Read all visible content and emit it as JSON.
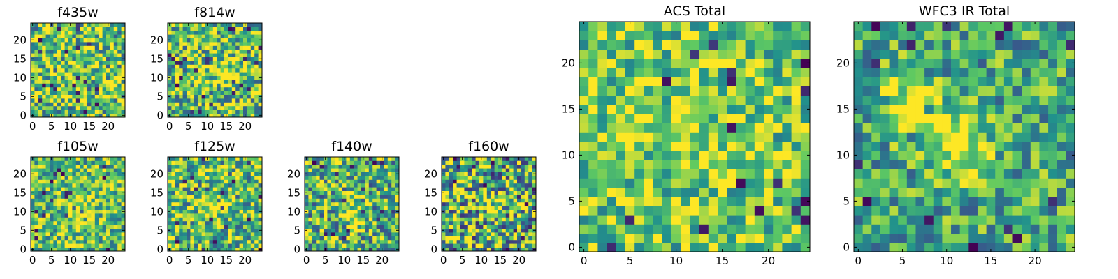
{
  "figure": {
    "background": "#ffffff",
    "colormap": "viridis",
    "colormap_stops": [
      "#440154",
      "#3b528b",
      "#21918c",
      "#5ec962",
      "#fde725"
    ]
  },
  "chart_data": [
    {
      "type": "heatmap",
      "title": "f435w",
      "grid_size": [
        25,
        25
      ],
      "xlim": [
        -0.5,
        24.5
      ],
      "ylim": [
        -0.5,
        24.5
      ],
      "x_ticks": [
        0,
        5,
        10,
        15,
        20
      ],
      "y_ticks": [
        0,
        5,
        10,
        15,
        20
      ],
      "seed": 11,
      "value_range": [
        0,
        1
      ],
      "mean_level": 0.72,
      "noise_scale": 0.55,
      "blob_strength": 0.0,
      "hot_spots": []
    },
    {
      "type": "heatmap",
      "title": "f814w",
      "grid_size": [
        25,
        25
      ],
      "xlim": [
        -0.5,
        24.5
      ],
      "ylim": [
        -0.5,
        24.5
      ],
      "x_ticks": [
        0,
        5,
        10,
        15,
        20
      ],
      "y_ticks": [
        0,
        5,
        10,
        15,
        20
      ],
      "seed": 23,
      "value_range": [
        0,
        1
      ],
      "mean_level": 0.72,
      "noise_scale": 0.55,
      "blob_strength": 0.25,
      "hot_spots": [
        [
          13,
          12
        ]
      ]
    },
    {
      "type": "heatmap",
      "title": "f105w",
      "grid_size": [
        25,
        25
      ],
      "xlim": [
        -0.5,
        24.5
      ],
      "ylim": [
        -0.5,
        24.5
      ],
      "x_ticks": [
        0,
        5,
        10,
        15,
        20
      ],
      "y_ticks": [
        0,
        5,
        10,
        15,
        20
      ],
      "seed": 37,
      "value_range": [
        0,
        1
      ],
      "mean_level": 0.7,
      "noise_scale": 0.45,
      "blob_strength": 0.3,
      "hot_spots": [
        [
          12,
          11
        ]
      ]
    },
    {
      "type": "heatmap",
      "title": "f125w",
      "grid_size": [
        25,
        25
      ],
      "xlim": [
        -0.5,
        24.5
      ],
      "ylim": [
        -0.5,
        24.5
      ],
      "x_ticks": [
        0,
        5,
        10,
        15,
        20
      ],
      "y_ticks": [
        0,
        5,
        10,
        15,
        20
      ],
      "seed": 41,
      "value_range": [
        0,
        1
      ],
      "mean_level": 0.68,
      "noise_scale": 0.5,
      "blob_strength": 0.3,
      "hot_spots": [
        [
          11,
          12
        ]
      ]
    },
    {
      "type": "heatmap",
      "title": "f140w",
      "grid_size": [
        25,
        25
      ],
      "xlim": [
        -0.5,
        24.5
      ],
      "ylim": [
        -0.5,
        24.5
      ],
      "x_ticks": [
        0,
        5,
        10,
        15,
        20
      ],
      "y_ticks": [
        0,
        5,
        10,
        15,
        20
      ],
      "seed": 53,
      "value_range": [
        0,
        1
      ],
      "mean_level": 0.66,
      "noise_scale": 0.55,
      "blob_strength": 0.3,
      "hot_spots": [
        [
          12,
          10
        ]
      ]
    },
    {
      "type": "heatmap",
      "title": "f160w",
      "grid_size": [
        25,
        25
      ],
      "xlim": [
        -0.5,
        24.5
      ],
      "ylim": [
        -0.5,
        24.5
      ],
      "x_ticks": [
        0,
        5,
        10,
        15,
        20
      ],
      "y_ticks": [
        0,
        5,
        10,
        15,
        20
      ],
      "seed": 67,
      "value_range": [
        0,
        1
      ],
      "mean_level": 0.64,
      "noise_scale": 0.6,
      "blob_strength": 0.2,
      "hot_spots": [
        [
          12,
          12
        ]
      ]
    },
    {
      "type": "heatmap",
      "title": "ACS Total",
      "grid_size": [
        25,
        25
      ],
      "xlim": [
        -0.5,
        24.5
      ],
      "ylim": [
        -0.5,
        24.5
      ],
      "x_ticks": [
        0,
        5,
        10,
        15,
        20
      ],
      "y_ticks": [
        0,
        5,
        10,
        15,
        20
      ],
      "seed": 79,
      "value_range": [
        0,
        1
      ],
      "mean_level": 0.74,
      "noise_scale": 0.4,
      "blob_strength": 0.15,
      "hot_spots": [
        [
          12,
          11
        ],
        [
          6,
          14
        ]
      ]
    },
    {
      "type": "heatmap",
      "title": "WFC3 IR Total",
      "grid_size": [
        25,
        25
      ],
      "xlim": [
        -0.5,
        24.5
      ],
      "ylim": [
        -0.5,
        24.5
      ],
      "x_ticks": [
        0,
        5,
        10,
        15,
        20
      ],
      "y_ticks": [
        0,
        5,
        10,
        15,
        20
      ],
      "seed": 97,
      "value_range": [
        0,
        1
      ],
      "mean_level": 0.6,
      "noise_scale": 0.4,
      "blob_strength": 0.45,
      "hot_spots": [
        [
          12,
          11
        ],
        [
          6,
          15
        ]
      ]
    }
  ]
}
